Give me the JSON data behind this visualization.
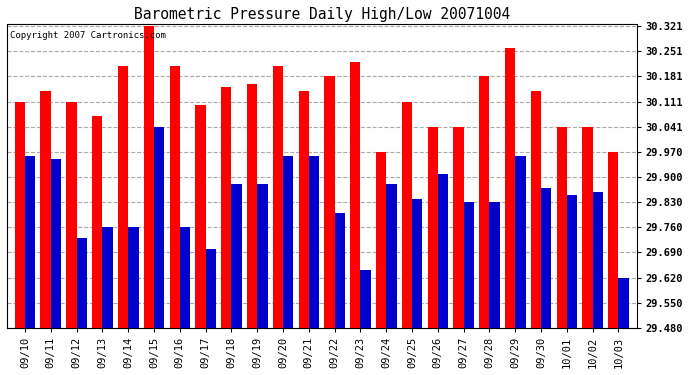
{
  "title": "Barometric Pressure Daily High/Low 20071004",
  "copyright": "Copyright 2007 Cartronics.com",
  "dates": [
    "09/10",
    "09/11",
    "09/12",
    "09/13",
    "09/14",
    "09/15",
    "09/16",
    "09/17",
    "09/18",
    "09/19",
    "09/20",
    "09/21",
    "09/22",
    "09/23",
    "09/24",
    "09/25",
    "09/26",
    "09/27",
    "09/28",
    "09/29",
    "09/30",
    "10/01",
    "10/02",
    "10/03"
  ],
  "highs": [
    30.111,
    30.141,
    30.111,
    30.071,
    30.211,
    30.321,
    30.211,
    30.101,
    30.151,
    30.161,
    30.211,
    30.141,
    30.181,
    30.221,
    29.97,
    30.111,
    30.041,
    30.041,
    30.181,
    30.261,
    30.141,
    30.041,
    30.041,
    29.97
  ],
  "lows": [
    29.96,
    29.95,
    29.73,
    29.76,
    29.76,
    30.041,
    29.76,
    29.7,
    29.88,
    29.88,
    29.96,
    29.96,
    29.8,
    29.64,
    29.88,
    29.84,
    29.91,
    29.83,
    29.83,
    29.96,
    29.87,
    29.85,
    29.86,
    29.62
  ],
  "high_color": "#FF0000",
  "low_color": "#0000CC",
  "bg_color": "#FFFFFF",
  "plot_bg_color": "#FFFFFF",
  "grid_color": "#AAAAAA",
  "ymin": 29.48,
  "ymax": 30.321,
  "yticks": [
    29.48,
    29.55,
    29.62,
    29.69,
    29.76,
    29.83,
    29.9,
    29.97,
    30.041,
    30.111,
    30.181,
    30.251,
    30.321
  ]
}
